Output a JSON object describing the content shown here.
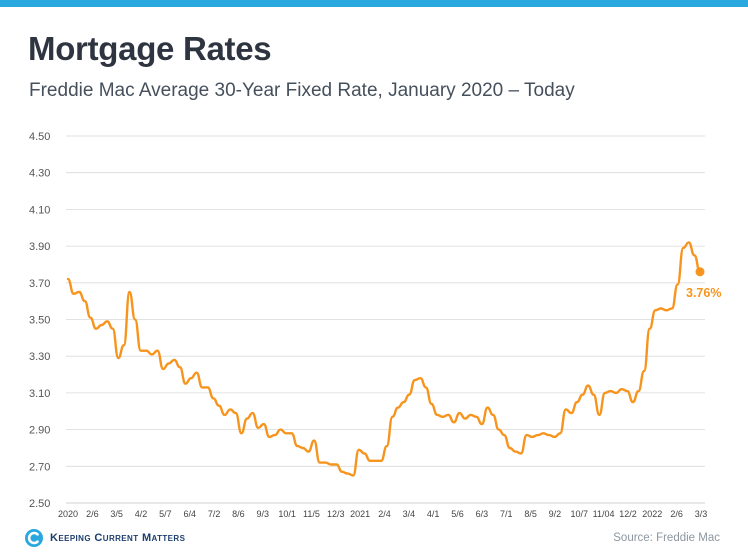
{
  "title": "Mortgage Rates",
  "subtitle": "Freddie Mac Average 30-Year Fixed Rate, January 2020 – Today",
  "source": "Source: Freddie Mac",
  "logo": {
    "icon": "kcm-logo-icon",
    "text": "Keeping Current Matters"
  },
  "colors": {
    "line": "#f7941d",
    "top_bar": "#29a8df",
    "grid": "#d9d9d9",
    "logo": "#1d3e6e"
  },
  "chart_data": {
    "type": "line",
    "title": "Mortgage Rates",
    "subtitle": "Freddie Mac Average 30-Year Fixed Rate, January 2020 – Today",
    "ylim": [
      2.5,
      4.5
    ],
    "y_ticks": [
      "4.50",
      "4.30",
      "4.10",
      "3.90",
      "3.70",
      "3.50",
      "3.30",
      "3.10",
      "2.90",
      "2.70",
      "2.50"
    ],
    "grid": true,
    "x_tick_labels": [
      "2020",
      "2/6",
      "3/5",
      "4/2",
      "5/7",
      "6/4",
      "7/2",
      "8/6",
      "9/3",
      "10/1",
      "11/5",
      "12/3",
      "2021",
      "2/4",
      "3/4",
      "4/1",
      "5/6",
      "6/3",
      "7/1",
      "8/5",
      "9/2",
      "10/7",
      "11/04",
      "12/2",
      "2022",
      "2/6",
      "3/3"
    ],
    "values": [
      3.72,
      3.64,
      3.65,
      3.6,
      3.51,
      3.45,
      3.47,
      3.49,
      3.45,
      3.29,
      3.36,
      3.65,
      3.5,
      3.33,
      3.33,
      3.31,
      3.33,
      3.23,
      3.26,
      3.28,
      3.24,
      3.15,
      3.18,
      3.21,
      3.13,
      3.13,
      3.07,
      3.03,
      2.98,
      3.01,
      2.99,
      2.88,
      2.96,
      2.99,
      2.91,
      2.93,
      2.86,
      2.87,
      2.9,
      2.88,
      2.88,
      2.81,
      2.8,
      2.78,
      2.84,
      2.72,
      2.72,
      2.71,
      2.71,
      2.67,
      2.66,
      2.65,
      2.79,
      2.77,
      2.73,
      2.73,
      2.73,
      2.81,
      2.97,
      3.02,
      3.05,
      3.09,
      3.17,
      3.18,
      3.13,
      3.04,
      2.98,
      2.97,
      2.98,
      2.94,
      2.99,
      2.96,
      2.98,
      2.97,
      2.93,
      3.02,
      2.98,
      2.9,
      2.87,
      2.8,
      2.78,
      2.77,
      2.87,
      2.86,
      2.87,
      2.88,
      2.87,
      2.86,
      2.88,
      3.01,
      2.99,
      3.05,
      3.09,
      3.14,
      3.09,
      2.98,
      3.1,
      3.11,
      3.1,
      3.12,
      3.11,
      3.05,
      3.11,
      3.22,
      3.45,
      3.55,
      3.56,
      3.55,
      3.56,
      3.69,
      3.89,
      3.92,
      3.85,
      3.76
    ],
    "last_value_label": "3.76%"
  }
}
